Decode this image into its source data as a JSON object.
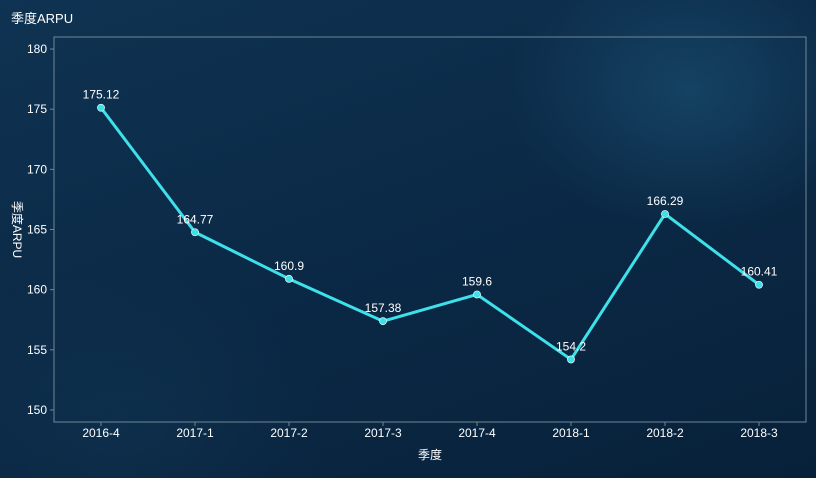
{
  "chart_data": {
    "type": "line",
    "title": "季度ARPU",
    "xlabel": "季度",
    "ylabel": "季度ARPU",
    "categories": [
      "2016-4",
      "2017-1",
      "2017-2",
      "2017-3",
      "2017-4",
      "2018-1",
      "2018-2",
      "2018-3"
    ],
    "series": [
      {
        "values": [
          175.12,
          164.77,
          160.9,
          157.38,
          159.6,
          154.2,
          166.29,
          160.41
        ],
        "labels": [
          "175.12",
          "164.77",
          "160.9",
          "157.38",
          "159.6",
          "154.2",
          "166.29",
          "160.41"
        ],
        "color": "#3ee0ea"
      }
    ],
    "ylim": [
      149,
      181
    ],
    "yticks": [
      150,
      155,
      160,
      165,
      170,
      175,
      180
    ],
    "grid": false,
    "legend": "none"
  },
  "colors": {
    "background": "#0b2744",
    "line": "#3ee0ea",
    "text": "#ffffff",
    "frame": "#6f8696"
  }
}
